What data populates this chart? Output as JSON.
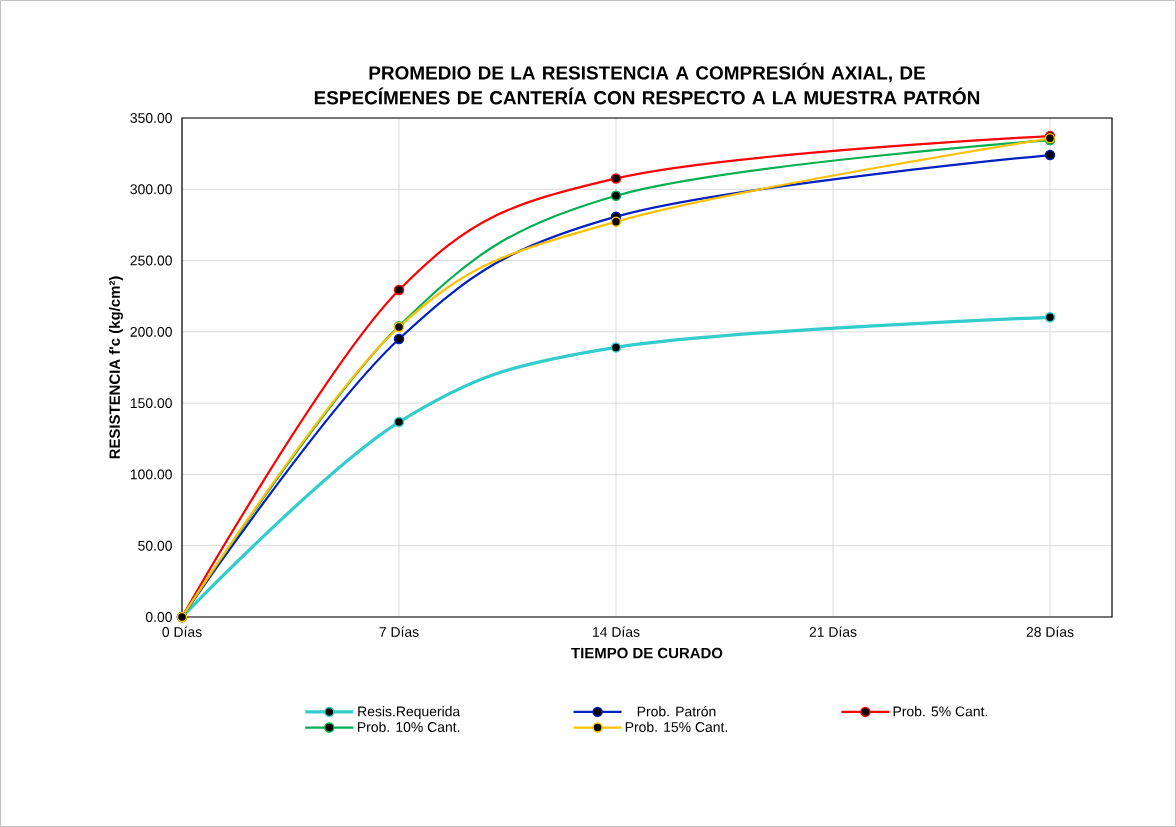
{
  "chart_data": {
    "type": "line",
    "title": "PROMEDIO DE LA RESISTENCIA A COMPRESIÓN AXIAL, DE ESPECÍMENES DE CANTERÍA CON RESPECTO A LA MUESTRA PATRÓN",
    "xlabel": "TIEMPO DE CURADO",
    "ylabel": "RESISTENCIA  f'c (kg/cm²)",
    "x": [
      0,
      7,
      14,
      28
    ],
    "series": [
      {
        "name": "Resis.Requerida",
        "color": "#33cccc",
        "values": [
          0,
          136.7,
          189.1,
          210.2
        ]
      },
      {
        "name": "Prob. Patrón",
        "color": "#0020c0",
        "values": [
          0,
          195,
          280.8,
          324
        ]
      },
      {
        "name": "Prob. 5% Cant.",
        "color": "#ff0000",
        "values": [
          0,
          229.3,
          307.6,
          337.3
        ]
      },
      {
        "name": "Prob. 10% Cant.",
        "color": "#00b050",
        "values": [
          0,
          204,
          295.5,
          334.5
        ]
      },
      {
        "name": "Prob. 15% Cant.",
        "color": "#ffc000",
        "values": [
          0,
          203.4,
          277.3,
          335.7
        ]
      }
    ],
    "xlim": [
      0,
      30
    ],
    "ylim": [
      0,
      350
    ],
    "xticks": [
      {
        "value": 0,
        "label": "0 Días"
      },
      {
        "value": 7,
        "label": "7 Días"
      },
      {
        "value": 14,
        "label": "14 Días"
      },
      {
        "value": 21,
        "label": "21 Días"
      },
      {
        "value": 28,
        "label": "28 Días"
      }
    ],
    "yticks": [
      {
        "value": 0,
        "label": "0.00"
      },
      {
        "value": 50,
        "label": "50.00"
      },
      {
        "value": 100,
        "label": "100.00"
      },
      {
        "value": 150,
        "label": "150.00"
      },
      {
        "value": 200,
        "label": "200.00"
      },
      {
        "value": 250,
        "label": "250.00"
      },
      {
        "value": 300,
        "label": "300.00"
      },
      {
        "value": 350,
        "label": "350.00"
      }
    ],
    "grid": true,
    "legend": "bottom",
    "marker": "circle",
    "line_style": "solid"
  }
}
